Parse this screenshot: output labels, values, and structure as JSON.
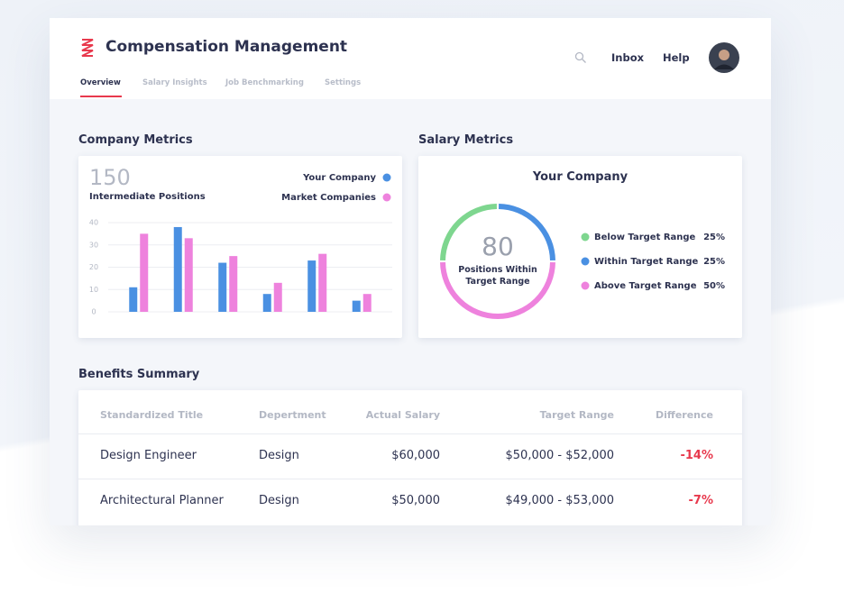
{
  "header": {
    "title": "Compensation Management",
    "nav": [
      "Overview",
      "Salary Insights",
      "Job Benchmarking",
      "Settings"
    ],
    "links": [
      "Inbox",
      "Help"
    ]
  },
  "chart_data": [
    {
      "type": "bar",
      "title": "Company Metrics",
      "total": 150,
      "total_label": "Intermediate Positions",
      "categories": [
        null,
        null,
        null,
        null,
        null,
        null
      ],
      "series": [
        {
          "name": "Your Company",
          "color": "#4a90e2",
          "values": [
            11,
            38,
            22,
            8,
            23,
            5
          ]
        },
        {
          "name": "Market Companies",
          "color": "#ee82dd",
          "values": [
            35,
            33,
            25,
            13,
            26,
            8
          ]
        }
      ],
      "ylim": [
        0,
        40
      ],
      "yticks": [
        0,
        10,
        20,
        30,
        40
      ],
      "grid": true,
      "legend": "top-right"
    },
    {
      "type": "pie",
      "title": "Salary Metrics",
      "subtitle": "Your Company",
      "center_value": 80,
      "center_label": "Positions Within Target Range",
      "categories": [
        "Below Target Range",
        "Within Target Range",
        "Above Target Range"
      ],
      "values": [
        25,
        25,
        50
      ],
      "value_labels": [
        "25%",
        "25%",
        "50%"
      ],
      "colors": [
        "#7ed68f",
        "#4a90e2",
        "#ee82dd"
      ],
      "legend": "right"
    }
  ],
  "table": {
    "title": "Benefits Summary",
    "columns": [
      "Standardized Title",
      "Depertment",
      "Actual Salary",
      "Target Range",
      "Difference"
    ],
    "rows": [
      [
        "Design Engineer",
        "Design",
        "$60,000",
        "$50,000 - $52,000",
        "-14%"
      ],
      [
        "Architectural Planner",
        "Design",
        "$50,000",
        "$49,000 - $53,000",
        "-7%"
      ]
    ]
  }
}
